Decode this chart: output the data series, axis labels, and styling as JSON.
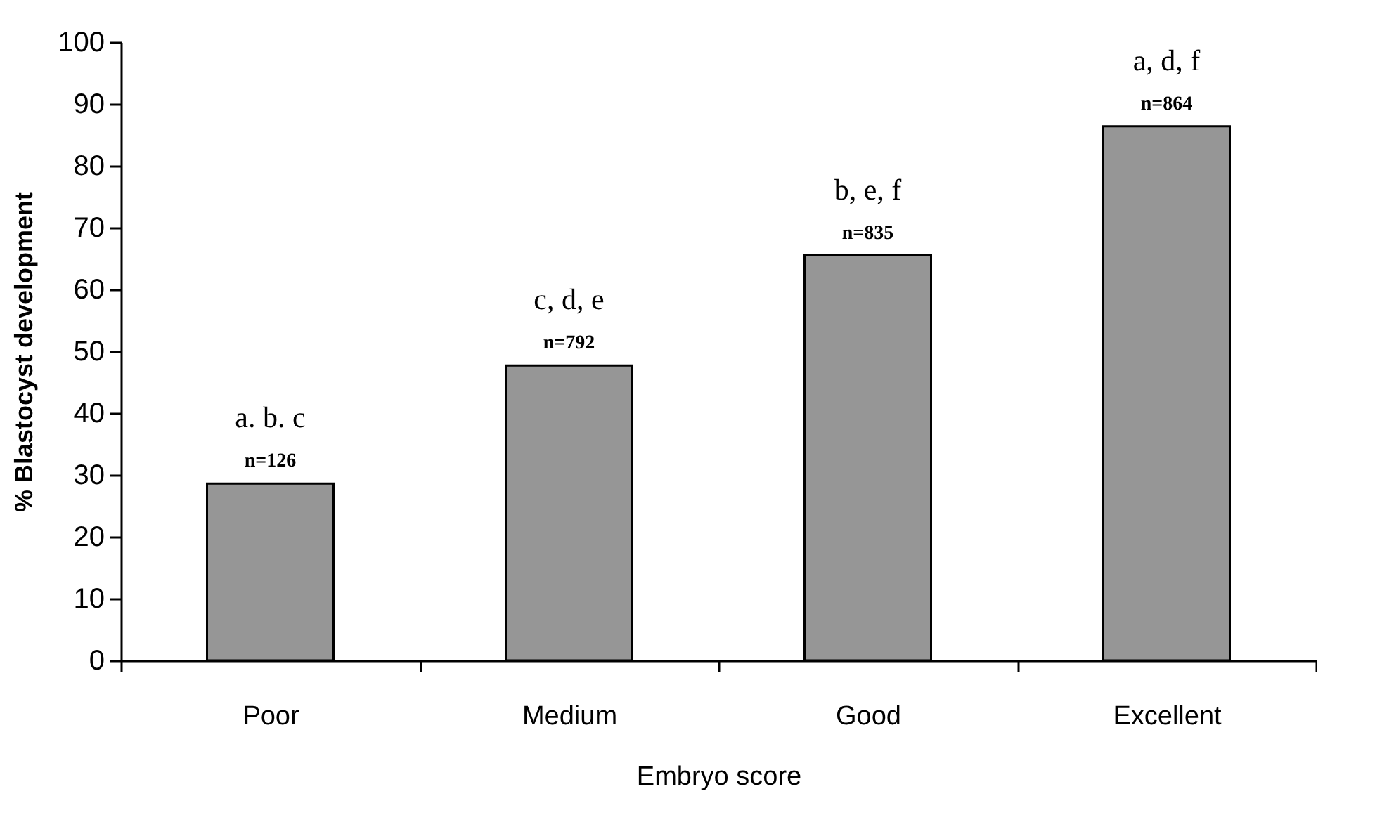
{
  "chart_data": {
    "type": "bar",
    "xlabel": "Embryo score",
    "ylabel": "% Blastocyst development",
    "categories": [
      "Poor",
      "Medium",
      "Good",
      "Excellent"
    ],
    "values": [
      28.6,
      47.7,
      65.5,
      86.4
    ],
    "color": "#969696",
    "ylim": [
      0,
      100
    ],
    "yticks": [
      0,
      10,
      20,
      30,
      40,
      50,
      60,
      70,
      80,
      90,
      100
    ],
    "grid": false,
    "annotations": [
      {
        "text": "a. b. c",
        "x": "Poor",
        "y": 28.6
      },
      {
        "text": "n=126",
        "x": "Poor",
        "y": 28.6
      },
      {
        "text": "c, d, e",
        "x": "Medium",
        "y": 47.7
      },
      {
        "text": "n=792",
        "x": "Medium",
        "y": 47.7
      },
      {
        "text": "b, e, f",
        "x": "Good",
        "y": 65.5
      },
      {
        "text": "n=835",
        "x": "Good",
        "y": 65.5
      },
      {
        "text": "a, d, f",
        "x": "Excellent",
        "y": 86.4
      },
      {
        "text": "n=864",
        "x": "Excellent",
        "y": 86.4
      }
    ]
  }
}
